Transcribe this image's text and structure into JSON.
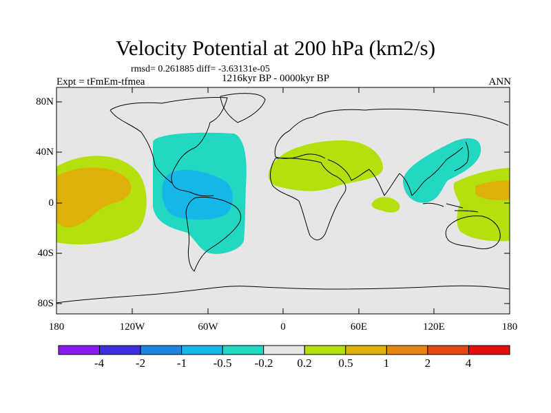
{
  "title": "Velocity Potential at 200 hPa (km2/s)",
  "stats": "rmsd= 0.261885  diff= -3.63131e-05",
  "period": "1216kyr BP - 0000kyr BP",
  "experiment": "Expt = tFmEm-tfmea",
  "season": "ANN",
  "map": {
    "lat_labels": [
      "80N",
      "40N",
      "0",
      "40S",
      "80S"
    ],
    "lon_labels": [
      "180",
      "120W",
      "60W",
      "0",
      "60E",
      "120E",
      "180"
    ],
    "background_color": "#e6e6e6"
  },
  "colorbar": {
    "labels": [
      "-4",
      "-2",
      "-1",
      "-0.5",
      "-0.2",
      "0.2",
      "0.5",
      "1",
      "2",
      "4"
    ],
    "colors": [
      "#8a1cf0",
      "#3b2fe0",
      "#1e86e0",
      "#16b7e8",
      "#22d8c2",
      "#e6e6e6",
      "#b4e00e",
      "#e0b00a",
      "#e68414",
      "#e64a14",
      "#e40c0c"
    ]
  },
  "fields": {
    "positive_outer": "#b4e00e",
    "positive_inner": "#e0b00a",
    "negative_outer": "#22d8c2",
    "negative_inner": "#16b7e8"
  }
}
